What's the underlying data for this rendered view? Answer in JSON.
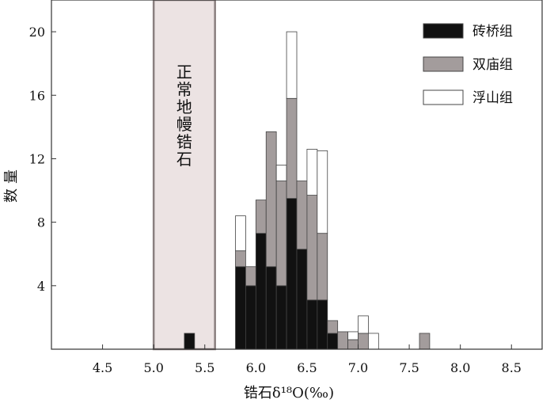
{
  "chart_data": {
    "type": "bar",
    "stacked": true,
    "xlabel": "锆石δ¹⁸O(‰)",
    "ylabel": "数量",
    "xlim": [
      4.0,
      8.8
    ],
    "ylim": [
      0,
      22
    ],
    "x_ticks": [
      "4.5",
      "5.0",
      "5.5",
      "6.0",
      "6.5",
      "7.0",
      "7.5",
      "8.0",
      "8.5"
    ],
    "x_tick_values": [
      4.5,
      5.0,
      5.5,
      6.0,
      6.5,
      7.0,
      7.5,
      8.0,
      8.5
    ],
    "y_ticks": [
      "4",
      "8",
      "12",
      "16",
      "20"
    ],
    "y_tick_values": [
      4,
      8,
      12,
      16,
      20
    ],
    "bin_width": 0.1,
    "bins": [
      5.3,
      5.8,
      5.9,
      6.0,
      6.1,
      6.2,
      6.3,
      6.4,
      6.5,
      6.6,
      6.7,
      6.8,
      6.9,
      7.0,
      7.1,
      7.6
    ],
    "series": [
      {
        "name": "砖桥组",
        "color": "#111111",
        "values": [
          1,
          5.2,
          4,
          7.3,
          5.2,
          4,
          9.5,
          6.3,
          3.1,
          3.1,
          1,
          0,
          0,
          0,
          0,
          0
        ]
      },
      {
        "name": "双庙组",
        "color": "#a39c9c",
        "values": [
          0,
          1,
          1.2,
          2.1,
          8.5,
          6.6,
          6.3,
          4.3,
          6.6,
          4.2,
          0.8,
          1.1,
          0.6,
          1,
          0,
          1
        ]
      },
      {
        "name": "浮山组",
        "color": "#ffffff",
        "values": [
          0,
          2.2,
          0,
          0,
          0,
          1,
          4.2,
          0,
          2.9,
          5.2,
          0,
          0,
          0.5,
          1.1,
          1,
          0
        ]
      }
    ],
    "band": {
      "label": "正常地幔锆石",
      "x_range": [
        5.0,
        5.6
      ],
      "color": "#ece3e3"
    },
    "legend_position": "top-right",
    "grid": false
  }
}
